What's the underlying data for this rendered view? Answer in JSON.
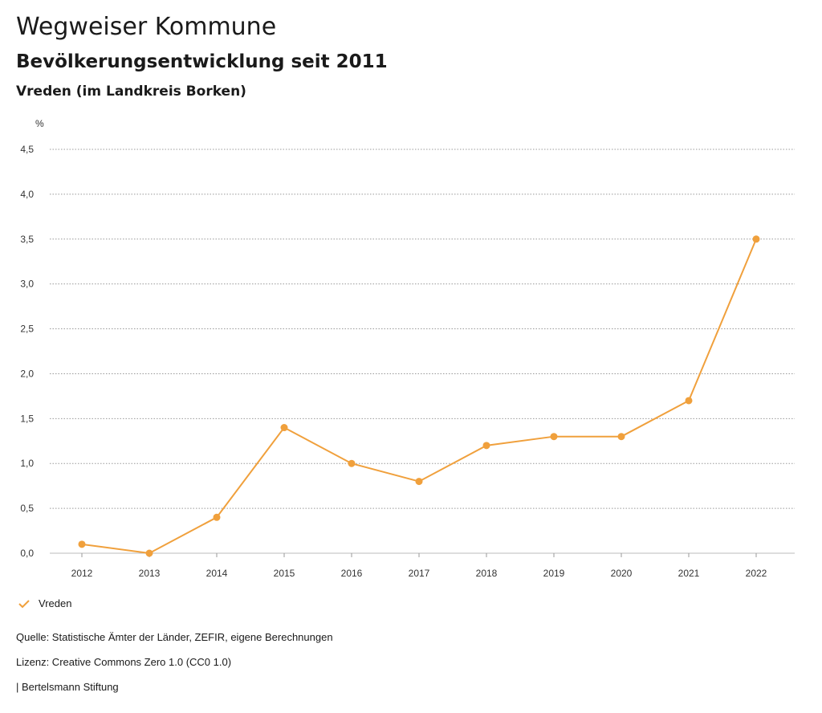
{
  "header": {
    "title": "Wegweiser Kommune",
    "subtitle": "Bevölkerungsentwicklung seit 2011",
    "place": "Vreden (im Landkreis Borken)"
  },
  "chart_data": {
    "type": "line",
    "ylabel": "%",
    "x": [
      "2012",
      "2013",
      "2014",
      "2015",
      "2016",
      "2017",
      "2018",
      "2019",
      "2020",
      "2021",
      "2022"
    ],
    "series": [
      {
        "name": "Vreden",
        "values": [
          0.1,
          0.0,
          0.4,
          1.4,
          1.0,
          0.8,
          1.2,
          1.3,
          1.3,
          1.7,
          3.5
        ]
      }
    ],
    "ylim": [
      0,
      4.5
    ],
    "yticks": [
      "0,0",
      "0,5",
      "1,0",
      "1,5",
      "2,0",
      "2,5",
      "3,0",
      "3,5",
      "4,0",
      "4,5"
    ],
    "grid": true,
    "legend": "bottom-left",
    "color": "#f0a03c"
  },
  "footer": {
    "source": "Quelle: Statistische Ämter der Länder, ZEFIR, eigene Berechnungen",
    "license": "Lizenz: Creative Commons Zero 1.0 (CC0 1.0)",
    "publisher": "| Bertelsmann Stiftung"
  }
}
